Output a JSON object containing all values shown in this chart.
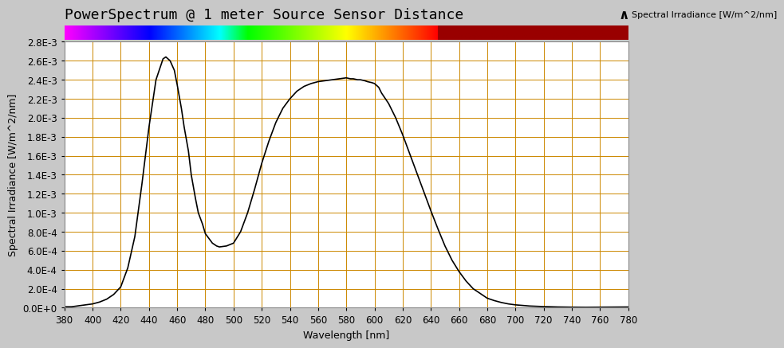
{
  "title": "PowerSpectrum @ 1 meter Source Sensor Distance",
  "ylabel": "Spectral Irradiance [W/m^2/nm]",
  "xlabel": "Wavelength [nm]",
  "legend_label": "Spectral Irradiance [W/m^2/nm]",
  "xlim": [
    380,
    780
  ],
  "ylim": [
    0.0,
    0.0028
  ],
  "bg_color": "#c8c8c8",
  "plot_bg_color": "#ffffff",
  "grid_color": "#cc8800",
  "line_color": "#000000",
  "title_fontsize": 13,
  "label_fontsize": 9,
  "tick_fontsize": 8.5,
  "yticks": [
    0.0,
    0.0002,
    0.0004,
    0.0006,
    0.0008,
    0.001,
    0.0012,
    0.0014,
    0.0016,
    0.0018,
    0.002,
    0.0022,
    0.0024,
    0.0026,
    0.0028
  ],
  "ytick_labels": [
    "0.0E+0",
    "2.0E-4",
    "4.0E-4",
    "6.0E-4",
    "8.0E-4",
    "1.0E-3",
    "1.2E-3",
    "1.4E-3",
    "1.6E-3",
    "1.8E-3",
    "2.0E-3",
    "2.2E-3",
    "2.4E-3",
    "2.6E-3",
    "2.8E-3"
  ],
  "xticks": [
    380,
    400,
    420,
    440,
    460,
    480,
    500,
    520,
    540,
    560,
    580,
    600,
    620,
    640,
    660,
    680,
    700,
    720,
    740,
    760,
    780
  ],
  "spectrum_wavelengths": [
    380,
    385,
    390,
    395,
    400,
    405,
    410,
    415,
    420,
    425,
    430,
    435,
    440,
    445,
    450,
    452,
    455,
    458,
    460,
    463,
    465,
    468,
    470,
    473,
    475,
    478,
    480,
    483,
    485,
    488,
    490,
    495,
    500,
    505,
    510,
    515,
    520,
    525,
    530,
    535,
    540,
    545,
    550,
    555,
    560,
    565,
    570,
    575,
    580,
    583,
    585,
    588,
    590,
    593,
    595,
    598,
    600,
    603,
    605,
    610,
    615,
    620,
    625,
    630,
    635,
    640,
    645,
    650,
    655,
    660,
    665,
    670,
    675,
    680,
    685,
    690,
    695,
    700,
    710,
    720,
    730,
    740,
    750,
    760,
    770,
    780
  ],
  "spectrum_values": [
    1e-05,
    1e-05,
    2e-05,
    3e-05,
    4e-05,
    6e-05,
    9e-05,
    0.00014,
    0.00022,
    0.00042,
    0.00075,
    0.0013,
    0.0019,
    0.0024,
    0.00262,
    0.00264,
    0.0026,
    0.0025,
    0.00235,
    0.0021,
    0.0019,
    0.00165,
    0.0014,
    0.00115,
    0.001,
    0.00088,
    0.00078,
    0.00072,
    0.00068,
    0.00065,
    0.00064,
    0.00065,
    0.00068,
    0.0008,
    0.001,
    0.00125,
    0.00152,
    0.00175,
    0.00195,
    0.0021,
    0.0022,
    0.00228,
    0.00233,
    0.00236,
    0.00238,
    0.00239,
    0.0024,
    0.00241,
    0.00242,
    0.00241,
    0.00241,
    0.0024,
    0.0024,
    0.00239,
    0.00238,
    0.00237,
    0.00236,
    0.00232,
    0.00226,
    0.00215,
    0.002,
    0.00182,
    0.00162,
    0.00142,
    0.00122,
    0.00102,
    0.00083,
    0.00065,
    0.0005,
    0.00038,
    0.00028,
    0.0002,
    0.00015,
    0.0001,
    7.5e-05,
    5.5e-05,
    4e-05,
    3e-05,
    1.8e-05,
    1.2e-05,
    8e-06,
    6e-06,
    5e-06,
    6e-06,
    7e-06,
    8e-06
  ]
}
